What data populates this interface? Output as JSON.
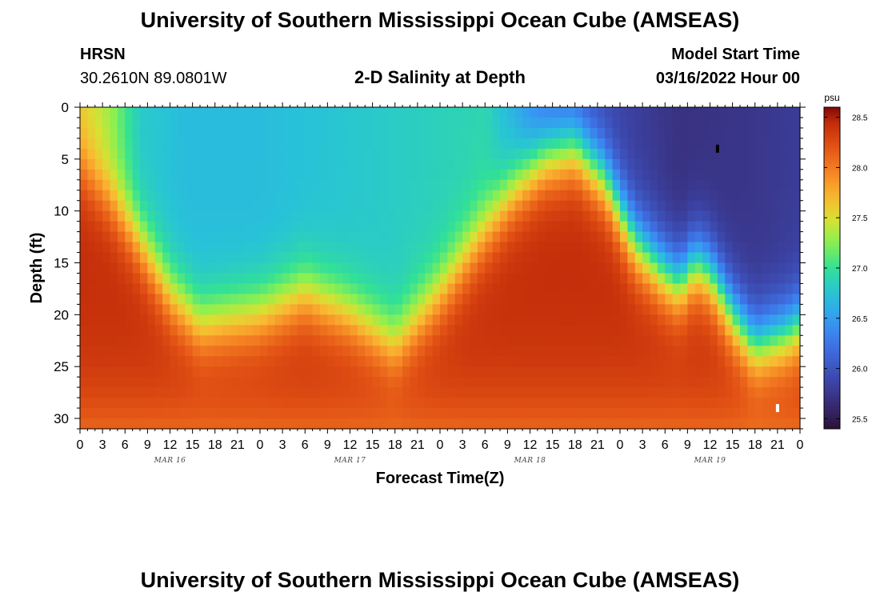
{
  "page": {
    "title": "University of Southern Mississippi Ocean Cube (AMSEAS)",
    "title_repeat": "University of Southern Mississippi Ocean Cube (AMSEAS)",
    "station": "HRSN",
    "coords": "30.2610N  89.0801W",
    "subtitle": "2-D Salinity at Depth",
    "model_start_label": "Model Start Time",
    "model_start_value": "03/16/2022 Hour 00"
  },
  "chart_data": {
    "type": "heatmap",
    "title": "2-D Salinity at Depth",
    "xlabel": "Forecast Time(Z)",
    "ylabel": "Depth (ft)",
    "xlim": [
      0,
      96
    ],
    "ylim": [
      0,
      31
    ],
    "y_ticks": [
      0,
      5,
      10,
      15,
      20,
      25,
      30
    ],
    "x_tick_labels": [
      "0",
      "3",
      "6",
      "9",
      "12",
      "15",
      "18",
      "21",
      "0",
      "3",
      "6",
      "9",
      "12",
      "15",
      "18",
      "21",
      "0",
      "3",
      "6",
      "9",
      "12",
      "15",
      "18",
      "21",
      "0",
      "3",
      "6",
      "9",
      "12",
      "15",
      "18",
      "21",
      "0"
    ],
    "day_labels": [
      {
        "hour": 12,
        "label": "MAR 16"
      },
      {
        "hour": 36,
        "label": "MAR 17"
      },
      {
        "hour": 60,
        "label": "MAR 18"
      },
      {
        "hour": 84,
        "label": "MAR 19"
      }
    ],
    "colorbar": {
      "unit": "psu",
      "min": 25.4,
      "max": 28.6,
      "ticks": [
        25.5,
        26.0,
        26.5,
        27.0,
        27.5,
        28.0,
        28.5
      ],
      "tick_labels": [
        "25.5",
        "26.0",
        "26.5",
        "27.0",
        "27.5",
        "28.0",
        "28.5"
      ]
    },
    "surface_salinity": [
      {
        "hour": 0,
        "psu": 27.6
      },
      {
        "hour": 4,
        "psu": 27.3
      },
      {
        "hour": 8,
        "psu": 26.8
      },
      {
        "hour": 14,
        "psu": 26.7
      },
      {
        "hour": 24,
        "psu": 26.7
      },
      {
        "hour": 40,
        "psu": 26.8
      },
      {
        "hour": 54,
        "psu": 26.9
      },
      {
        "hour": 58,
        "psu": 26.6
      },
      {
        "hour": 62,
        "psu": 26.2
      },
      {
        "hour": 70,
        "psu": 25.9
      },
      {
        "hour": 80,
        "psu": 25.7
      },
      {
        "hour": 90,
        "psu": 25.75
      },
      {
        "hour": 96,
        "psu": 25.8
      }
    ],
    "halocline_depth_ft": [
      {
        "hour": 0,
        "ft": 6
      },
      {
        "hour": 4,
        "ft": 9
      },
      {
        "hour": 8,
        "ft": 13
      },
      {
        "hour": 12,
        "ft": 18
      },
      {
        "hour": 16,
        "ft": 21
      },
      {
        "hour": 24,
        "ft": 20
      },
      {
        "hour": 30,
        "ft": 18
      },
      {
        "hour": 36,
        "ft": 20
      },
      {
        "hour": 42,
        "ft": 23
      },
      {
        "hour": 48,
        "ft": 18
      },
      {
        "hour": 54,
        "ft": 12
      },
      {
        "hour": 58,
        "ft": 8
      },
      {
        "hour": 62,
        "ft": 5
      },
      {
        "hour": 66,
        "ft": 4
      },
      {
        "hour": 70,
        "ft": 7
      },
      {
        "hour": 74,
        "ft": 13
      },
      {
        "hour": 78,
        "ft": 16
      },
      {
        "hour": 80,
        "ft": 17
      },
      {
        "hour": 82,
        "ft": 15
      },
      {
        "hour": 84,
        "ft": 16
      },
      {
        "hour": 87,
        "ft": 20
      },
      {
        "hour": 90,
        "ft": 23
      },
      {
        "hour": 94,
        "ft": 22
      },
      {
        "hour": 96,
        "ft": 21
      }
    ],
    "bottom_max_psu": 28.45,
    "markers": [
      {
        "hour": 85,
        "depth_ft": 4,
        "psu": 25.45
      },
      {
        "hour": 93,
        "depth_ft": 29,
        "psu": 28.55
      }
    ]
  }
}
